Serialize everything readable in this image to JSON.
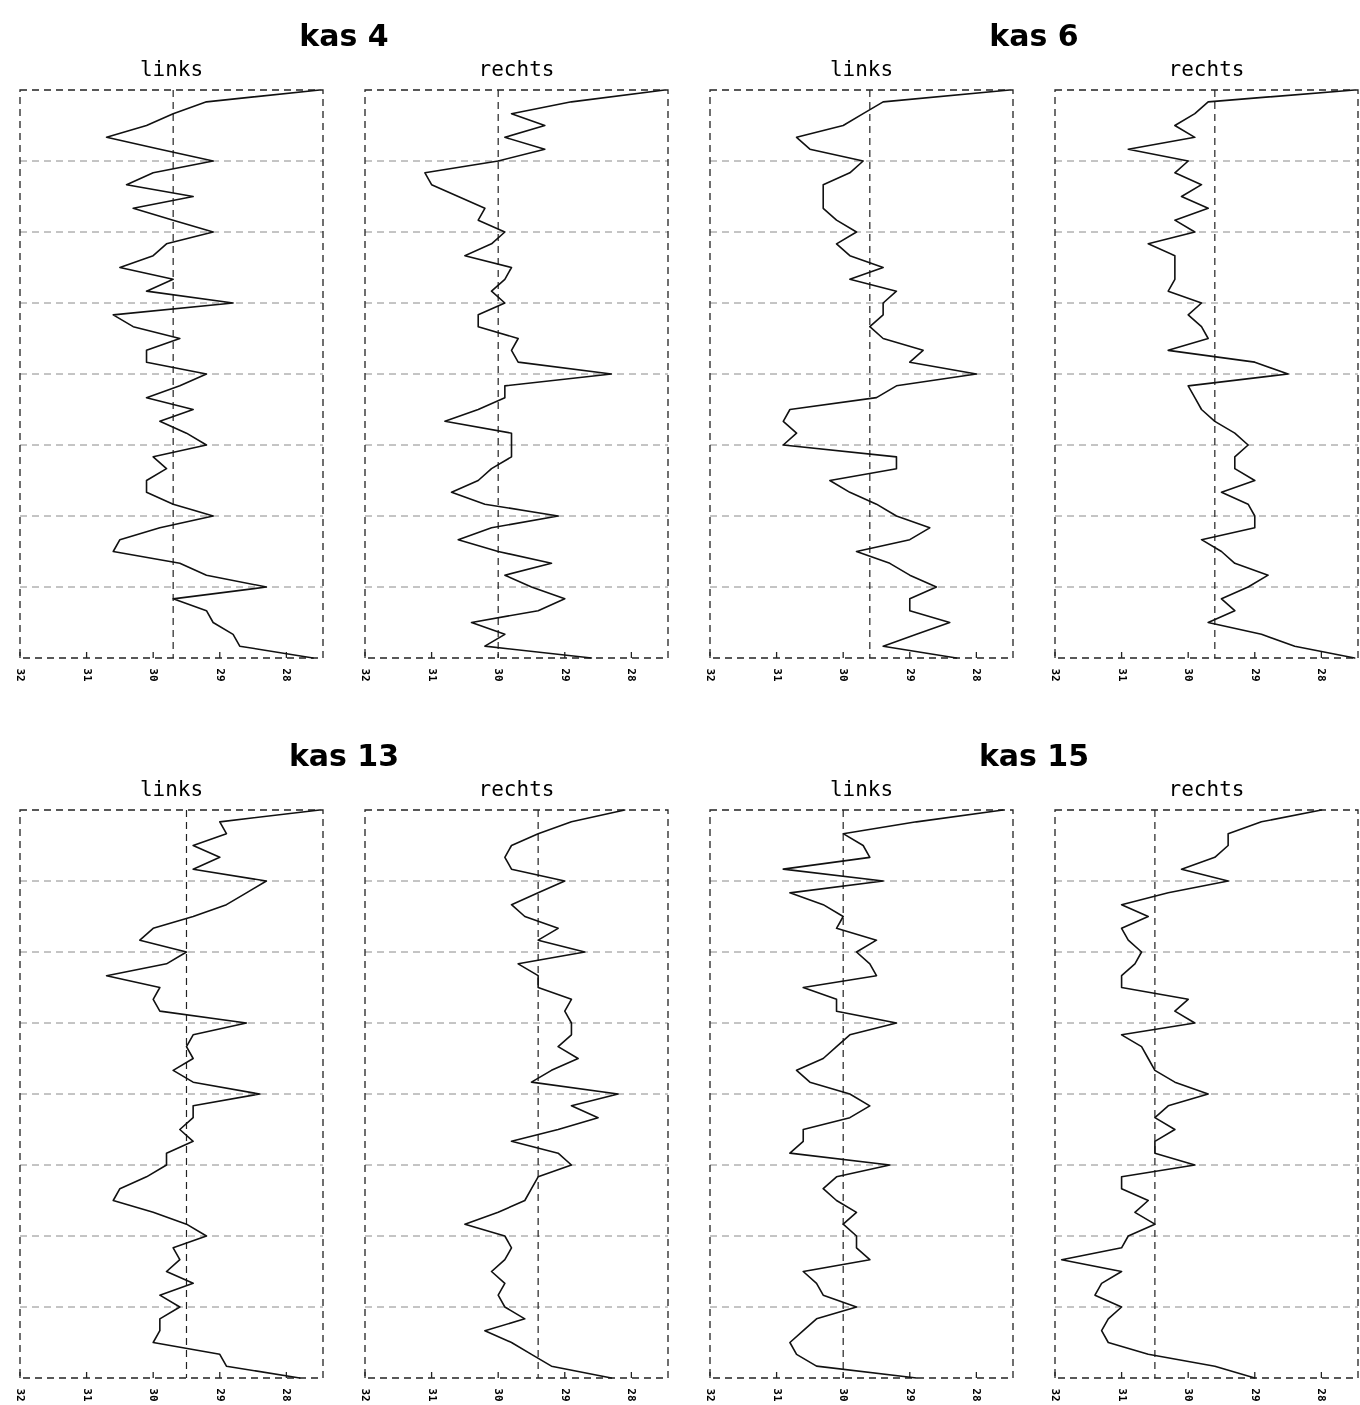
{
  "chart_data": [
    {
      "type": "line",
      "title": "kas 4",
      "subtitle": "links",
      "orientation": "horizontal",
      "categories": [
        null,
        null,
        null,
        null,
        null,
        null,
        null,
        null,
        null,
        null,
        null,
        null,
        null,
        null,
        null,
        null,
        null,
        null,
        null,
        null,
        null,
        null,
        null,
        null,
        null,
        null,
        null,
        null,
        null,
        null,
        null,
        null,
        null,
        null,
        null,
        null,
        null,
        null,
        null,
        null,
        null,
        null,
        null,
        null,
        null,
        null,
        null,
        null,
        null
      ],
      "color": "#111111",
      "values": [
        27.5,
        29.2,
        29.7,
        30.1,
        30.7,
        29.9,
        29.1,
        30.0,
        30.4,
        29.4,
        30.3,
        29.7,
        29.1,
        29.8,
        30.0,
        30.5,
        29.7,
        30.1,
        28.8,
        30.6,
        30.3,
        29.6,
        30.1,
        30.1,
        29.2,
        29.6,
        30.1,
        29.4,
        29.9,
        29.5,
        29.2,
        30.0,
        29.8,
        30.1,
        30.1,
        29.7,
        29.1,
        29.9,
        30.5,
        30.6,
        29.6,
        29.2,
        28.3,
        29.7,
        29.2,
        29.1,
        28.8,
        28.7,
        27.6
      ],
      "xlim": [
        32,
        27.45
      ],
      "xticks": [
        32,
        31,
        30,
        29,
        28
      ],
      "tick_labels": "x",
      "grid": "y",
      "ref_lines": [
        {
          "axis": "x",
          "value": 29.7
        }
      ]
    },
    {
      "type": "line",
      "subtitle": "rechts",
      "orientation": "horizontal",
      "categories": [
        null,
        null,
        null,
        null,
        null,
        null,
        null,
        null,
        null,
        null,
        null,
        null,
        null,
        null,
        null,
        null,
        null,
        null,
        null,
        null,
        null,
        null,
        null,
        null,
        null,
        null,
        null,
        null,
        null,
        null,
        null,
        null,
        null,
        null,
        null,
        null,
        null,
        null,
        null,
        null,
        null,
        null,
        null,
        null,
        null,
        null,
        null,
        null,
        null
      ],
      "color": "#111111",
      "values": [
        27.5,
        28.9,
        29.8,
        29.3,
        29.9,
        29.3,
        30.0,
        31.1,
        31.0,
        30.6,
        30.2,
        30.3,
        29.9,
        30.1,
        30.5,
        29.8,
        29.9,
        30.1,
        29.9,
        30.3,
        30.3,
        29.7,
        29.8,
        29.7,
        28.3,
        29.9,
        29.9,
        30.3,
        30.8,
        29.8,
        29.8,
        29.8,
        30.1,
        30.3,
        30.7,
        30.2,
        29.1,
        30.1,
        30.6,
        30.0,
        29.2,
        29.9,
        29.5,
        29.0,
        29.4,
        30.4,
        29.9,
        30.2,
        28.6
      ],
      "xlim": [
        32,
        27.45
      ],
      "xticks": [
        32,
        31,
        30,
        29,
        28
      ],
      "tick_labels": "x",
      "grid": "y",
      "ref_lines": [
        {
          "axis": "x",
          "value": 30.0
        }
      ]
    },
    {
      "type": "line",
      "title": "kas 6",
      "subtitle": "links",
      "orientation": "horizontal",
      "categories": [
        null,
        null,
        null,
        null,
        null,
        null,
        null,
        null,
        null,
        null,
        null,
        null,
        null,
        null,
        null,
        null,
        null,
        null,
        null,
        null,
        null,
        null,
        null,
        null,
        null,
        null,
        null,
        null,
        null,
        null,
        null,
        null,
        null,
        null,
        null,
        null,
        null,
        null,
        null,
        null,
        null,
        null,
        null,
        null,
        null,
        null,
        null,
        null,
        null
      ],
      "color": "#111111",
      "values": [
        27.5,
        29.4,
        29.7,
        30.0,
        30.7,
        30.5,
        29.7,
        29.9,
        30.3,
        30.3,
        30.3,
        30.1,
        29.8,
        30.1,
        29.9,
        29.4,
        29.9,
        29.2,
        29.4,
        29.4,
        29.6,
        29.4,
        28.8,
        29.0,
        28.0,
        29.2,
        29.5,
        30.8,
        30.9,
        30.7,
        30.9,
        29.2,
        29.2,
        30.2,
        29.9,
        29.5,
        29.2,
        28.7,
        29.0,
        29.8,
        29.3,
        29.0,
        28.6,
        29.0,
        29.0,
        28.4,
        28.9,
        29.4,
        28.3
      ],
      "xlim": [
        32,
        27.45
      ],
      "xticks": [
        32,
        31,
        30,
        29,
        28
      ],
      "tick_labels": "x",
      "grid": "y",
      "ref_lines": [
        {
          "axis": "x",
          "value": 29.6
        }
      ]
    },
    {
      "type": "line",
      "subtitle": "rechts",
      "orientation": "horizontal",
      "categories": [
        null,
        null,
        null,
        null,
        null,
        null,
        null,
        null,
        null,
        null,
        null,
        null,
        null,
        null,
        null,
        null,
        null,
        null,
        null,
        null,
        null,
        null,
        null,
        null,
        null,
        null,
        null,
        null,
        null,
        null,
        null,
        null,
        null,
        null,
        null,
        null,
        null,
        null,
        null,
        null,
        null,
        null,
        null,
        null,
        null,
        null,
        null,
        null,
        null
      ],
      "color": "#111111",
      "values": [
        27.5,
        29.7,
        29.9,
        30.2,
        29.9,
        30.9,
        30.0,
        30.2,
        29.8,
        30.1,
        29.7,
        30.2,
        29.9,
        30.6,
        30.2,
        30.2,
        30.2,
        30.3,
        29.8,
        30.0,
        29.8,
        29.7,
        30.3,
        29.0,
        28.5,
        30.0,
        29.9,
        29.8,
        29.6,
        29.3,
        29.1,
        29.3,
        29.3,
        29.0,
        29.5,
        29.1,
        29.0,
        29.0,
        29.8,
        29.5,
        29.3,
        28.8,
        29.1,
        29.5,
        29.3,
        29.7,
        28.9,
        28.4,
        27.5
      ],
      "xlim": [
        32,
        27.45
      ],
      "xticks": [
        32,
        31,
        30,
        29,
        28
      ],
      "tick_labels": "x",
      "grid": "y",
      "ref_lines": [
        {
          "axis": "x",
          "value": 29.6
        }
      ]
    },
    {
      "type": "line",
      "title": "kas 13",
      "subtitle": "links",
      "orientation": "horizontal",
      "categories": [
        null,
        null,
        null,
        null,
        null,
        null,
        null,
        null,
        null,
        null,
        null,
        null,
        null,
        null,
        null,
        null,
        null,
        null,
        null,
        null,
        null,
        null,
        null,
        null,
        null,
        null,
        null,
        null,
        null,
        null,
        null,
        null,
        null,
        null,
        null,
        null,
        null,
        null,
        null,
        null,
        null,
        null,
        null,
        null,
        null,
        null,
        null,
        null,
        null
      ],
      "color": "#111111",
      "values": [
        27.5,
        29.0,
        28.9,
        29.4,
        29.0,
        29.4,
        28.3,
        28.6,
        28.9,
        29.4,
        30.0,
        30.2,
        29.5,
        29.8,
        30.7,
        29.9,
        30.0,
        29.9,
        28.6,
        29.4,
        29.5,
        29.4,
        29.7,
        29.4,
        28.4,
        29.4,
        29.4,
        29.6,
        29.4,
        29.8,
        29.8,
        30.1,
        30.5,
        30.6,
        30.0,
        29.5,
        29.2,
        29.7,
        29.6,
        29.8,
        29.4,
        29.9,
        29.6,
        29.9,
        29.9,
        30.0,
        29.0,
        28.9,
        27.8
      ],
      "xlim": [
        32,
        27.45
      ],
      "xticks": [
        32,
        31,
        30,
        29,
        28
      ],
      "tick_labels": "x",
      "grid": "y",
      "ref_lines": [
        {
          "axis": "x",
          "value": 29.5
        }
      ]
    },
    {
      "type": "line",
      "subtitle": "rechts",
      "orientation": "horizontal",
      "categories": [
        null,
        null,
        null,
        null,
        null,
        null,
        null,
        null,
        null,
        null,
        null,
        null,
        null,
        null,
        null,
        null,
        null,
        null,
        null,
        null,
        null,
        null,
        null,
        null,
        null,
        null,
        null,
        null,
        null,
        null,
        null,
        null,
        null,
        null,
        null,
        null,
        null,
        null,
        null,
        null,
        null,
        null,
        null,
        null,
        null,
        null,
        null,
        null,
        null
      ],
      "color": "#111111",
      "values": [
        28.1,
        28.9,
        29.4,
        29.8,
        29.9,
        29.8,
        29.0,
        29.4,
        29.8,
        29.6,
        29.1,
        29.4,
        28.7,
        29.7,
        29.4,
        29.4,
        28.9,
        29.0,
        28.9,
        28.9,
        29.1,
        28.8,
        29.2,
        29.5,
        28.2,
        28.9,
        28.5,
        29.1,
        29.8,
        29.1,
        28.9,
        29.4,
        29.5,
        29.6,
        30.0,
        30.5,
        29.9,
        29.8,
        29.9,
        30.1,
        29.9,
        30.0,
        29.9,
        29.6,
        30.2,
        29.8,
        29.5,
        29.2,
        28.3
      ],
      "xlim": [
        32,
        27.45
      ],
      "xticks": [
        32,
        31,
        30,
        29,
        28
      ],
      "tick_labels": "x",
      "grid": "y",
      "ref_lines": [
        {
          "axis": "x",
          "value": 29.4
        }
      ]
    },
    {
      "type": "line",
      "title": "kas 15",
      "subtitle": "links",
      "orientation": "horizontal",
      "categories": [
        null,
        null,
        null,
        null,
        null,
        null,
        null,
        null,
        null,
        null,
        null,
        null,
        null,
        null,
        null,
        null,
        null,
        null,
        null,
        null,
        null,
        null,
        null,
        null,
        null,
        null,
        null,
        null,
        null,
        null,
        null,
        null,
        null,
        null,
        null,
        null,
        null,
        null,
        null,
        null,
        null,
        null,
        null,
        null,
        null,
        null,
        null,
        null,
        null
      ],
      "color": "#111111",
      "values": [
        27.6,
        28.9,
        30.0,
        29.7,
        29.6,
        30.9,
        29.4,
        30.8,
        30.3,
        30.0,
        30.1,
        29.5,
        29.8,
        29.6,
        29.5,
        30.6,
        30.1,
        30.1,
        29.2,
        29.9,
        30.1,
        30.3,
        30.7,
        30.5,
        29.9,
        29.6,
        29.9,
        30.6,
        30.6,
        30.8,
        29.3,
        30.1,
        30.3,
        30.1,
        29.8,
        30.0,
        29.8,
        29.8,
        29.6,
        30.6,
        30.4,
        30.3,
        29.8,
        30.4,
        30.6,
        30.8,
        30.7,
        30.4,
        28.9
      ],
      "xlim": [
        32,
        27.45
      ],
      "xticks": [
        32,
        31,
        30,
        29,
        28
      ],
      "tick_labels": "x",
      "grid": "y",
      "ref_lines": [
        {
          "axis": "x",
          "value": 30.0
        }
      ]
    },
    {
      "type": "line",
      "subtitle": "rechts",
      "orientation": "horizontal",
      "categories": [
        null,
        null,
        null,
        null,
        null,
        null,
        null,
        null,
        null,
        null,
        null,
        null,
        null,
        null,
        null,
        null,
        null,
        null,
        null,
        null,
        null,
        null,
        null,
        null,
        null,
        null,
        null,
        null,
        null,
        null,
        null,
        null,
        null,
        null,
        null,
        null,
        null,
        null,
        null,
        null,
        null,
        null,
        null,
        null,
        null,
        null,
        null,
        null,
        null
      ],
      "color": "#111111",
      "values": [
        28.0,
        28.9,
        29.4,
        29.4,
        29.6,
        30.1,
        29.4,
        30.3,
        31.0,
        30.6,
        31.0,
        30.9,
        30.7,
        30.8,
        31.0,
        31.0,
        30.0,
        30.2,
        29.9,
        31.0,
        30.7,
        30.6,
        30.5,
        30.2,
        29.7,
        30.3,
        30.5,
        30.2,
        30.5,
        30.5,
        29.9,
        31.0,
        31.0,
        30.6,
        30.8,
        30.5,
        30.9,
        31.0,
        31.9,
        31.0,
        31.3,
        31.4,
        31.0,
        31.2,
        31.3,
        31.2,
        30.6,
        29.6,
        29.0
      ],
      "xlim": [
        32,
        27.45
      ],
      "xticks": [
        32,
        31,
        30,
        29,
        28
      ],
      "tick_labels": "x",
      "grid": "y",
      "ref_lines": [
        {
          "axis": "x",
          "value": 30.5
        }
      ]
    }
  ]
}
